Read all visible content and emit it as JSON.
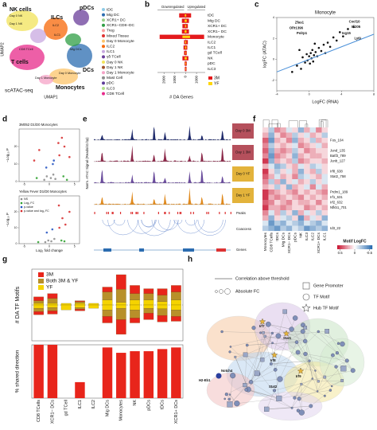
{
  "panel_labels": [
    "a",
    "b",
    "c",
    "d",
    "e",
    "f",
    "g",
    "h"
  ],
  "umap": {
    "title": "scATAC-seq",
    "x_label": "UMAP1",
    "y_label": "UMAP2",
    "cluster_labels": [
      "NK cells",
      "ILCs",
      "pDCs",
      "T cells",
      "DCs",
      "Monocytes"
    ],
    "subcluster_labels": [
      "Day 0 NK",
      "Day 1 NK",
      "ILC2",
      "ILC1",
      "Mig DCs",
      "CD8 TCell",
      "Day 0 Monocyte",
      "Day 1 Monocyte"
    ],
    "legend": [
      {
        "name": "tDC",
        "color": "#8ecae6"
      },
      {
        "name": "Mig DC",
        "color": "#2b6cb0"
      },
      {
        "name": "XCR1+ DC",
        "color": "#9bd18b"
      },
      {
        "name": "XCR1−CD8−DC",
        "color": "#2f9e44"
      },
      {
        "name": "Treg",
        "color": "#f7a1a1"
      },
      {
        "name": "Mixed Tissue",
        "color": "#e03131"
      },
      {
        "name": "Day 0 Monocyte",
        "color": "#fcc46a"
      },
      {
        "name": "ILC2",
        "color": "#f76707"
      },
      {
        "name": "ILC1",
        "color": "#c8a8e0"
      },
      {
        "name": "γδ TCell",
        "color": "#6a3d9a"
      },
      {
        "name": "Day 0 NK",
        "color": "#f2e35a"
      },
      {
        "name": "Day 1 NK",
        "color": "#a0522d"
      },
      {
        "name": "Day 1 Monocyte",
        "color": "#f5a3c7"
      },
      {
        "name": "Mast Cell",
        "color": "#8d8d8d"
      },
      {
        "name": "pDC",
        "color": "#5e3c99"
      },
      {
        "name": "ILC3",
        "color": "#b2df8a"
      },
      {
        "name": "CD8 TCell",
        "color": "#e7298a"
      }
    ]
  },
  "chart_data": [
    {
      "type": "bar",
      "orientation": "horizontal",
      "direction_labels": [
        "Downregulated",
        "Upregulated"
      ],
      "x_label": "# DA Genes",
      "categories": [
        "tDC",
        "Mig DC",
        "XCR1+ DC",
        "XCR1− DC",
        "Monocyte",
        "ILC2",
        "ILC1",
        "gd TCell",
        "NK",
        "pDC",
        "ILC3"
      ],
      "series": [
        {
          "name": "3M",
          "color": "#e41a1c",
          "values": [
            500,
            300,
            200,
            300,
            1700,
            200,
            150,
            100,
            250,
            100,
            80
          ],
          "values_down": [
            -600,
            -350,
            -300,
            -350,
            -2400,
            -150,
            -200,
            -150,
            -300,
            -100,
            -80
          ]
        },
        {
          "name": "YF",
          "color": "#ffd60a",
          "values": [
            50,
            100,
            50,
            80,
            400,
            50,
            60,
            20,
            100,
            30,
            20
          ],
          "values_down": [
            -80,
            -100,
            -60,
            -100,
            -300,
            -50,
            -60,
            -30,
            -100,
            -40,
            -20
          ]
        }
      ],
      "xlim": [
        -2600,
        1800
      ],
      "xticks": [
        {
          "value": -2000,
          "label": "2000"
        },
        {
          "value": -1000,
          "label": "1000"
        },
        0,
        {
          "value": 1000,
          "label": "1000"
        }
      ]
    },
    {
      "type": "scatter",
      "title": "Monocyte",
      "x_label": "LogFC (RNA)",
      "y_label": "logFC (ATAC)",
      "color": "#111111",
      "x": [
        -2.1,
        -1.5,
        -1,
        -0.8,
        -0.5,
        -0.3,
        -0.2,
        0,
        0.1,
        0.2,
        0.3,
        0.4,
        0.5,
        0.6,
        0.8,
        1,
        1.2,
        1.5,
        1.8,
        2,
        2.3,
        2.6,
        3,
        3.4,
        3.8,
        4.2,
        4.8,
        5.5,
        -1.2,
        0.7
      ],
      "values": [
        -1.2,
        -0.6,
        -0.9,
        0.2,
        -0.3,
        0.5,
        -0.1,
        0.3,
        -0.4,
        0.6,
        0.1,
        0.9,
        -0.2,
        0.4,
        0.7,
        0.3,
        1.1,
        0.8,
        1.4,
        0.6,
        1.6,
        1.2,
        2.1,
        1.8,
        2.6,
        2.2,
        2.9,
        3.1,
        0.9,
        1.5
      ],
      "fit": {
        "slope": 0.3,
        "intercept": 0,
        "color": "#4a90d9"
      },
      "annotations": [
        {
          "text": "Zfas1",
          "x": -1.2,
          "y": 3.5
        },
        {
          "text": "Olfr1396",
          "x": -1.6,
          "y": 3
        },
        {
          "text": "Polrp1",
          "x": -0.9,
          "y": 2.5
        },
        {
          "text": "Cxcl10",
          "x": 5.6,
          "y": 3.6
        },
        {
          "text": "Ifi205",
          "x": 5.8,
          "y": 3.1
        },
        {
          "text": "Isg15",
          "x": 4.6,
          "y": 2.5
        },
        {
          "text": "Ly6i",
          "x": 6,
          "y": 2
        }
      ],
      "xlim": [
        -4,
        8
      ],
      "ylim": [
        -3,
        4
      ],
      "xticks": [
        -4,
        0,
        4,
        8
      ],
      "yticks": [
        -2,
        0,
        2,
        4
      ]
    },
    {
      "type": "scatter",
      "title": "3M052 D1/D0 Monocytes",
      "y_label": "−Log₁₀ P",
      "series": [
        {
          "color": "#8a8a8a",
          "x": [
            -1,
            -0.5,
            0.3,
            0.8,
            1.2
          ],
          "values": [
            1,
            3,
            2,
            4,
            1.5
          ]
        },
        {
          "color": "#2ca02c",
          "x": [
            -2.5,
            2.8,
            3.5
          ],
          "values": [
            2,
            3,
            1
          ]
        },
        {
          "color": "#1f4fbf",
          "x": [
            -0.6,
            0.7,
            0.9
          ],
          "values": [
            8,
            10,
            12
          ]
        },
        {
          "color": "#d62728",
          "x": [
            -3,
            -2,
            2,
            3,
            4,
            2.5,
            1.8
          ],
          "values": [
            12,
            18,
            15,
            20,
            14,
            25,
            22
          ]
        }
      ],
      "xlim": [
        -6,
        6
      ],
      "ylim": [
        0,
        30
      ],
      "xticks": [
        -5,
        0,
        5
      ],
      "yticks": [
        0,
        10,
        20
      ]
    },
    {
      "type": "scatter",
      "title": "Yellow Fever D1/D0 Monocytes",
      "x_label": "Log₂ fold change",
      "y_label": "−Log₁₀ P",
      "series": [
        {
          "name": "NS",
          "color": "#8a8a8a",
          "x": [
            -0.8,
            -0.2,
            0.4,
            1
          ],
          "values": [
            1,
            2,
            1.5,
            3
          ]
        },
        {
          "name": "Log₂ FC",
          "color": "#2ca02c",
          "x": [
            -2.2,
            2.4,
            3
          ],
          "values": [
            1,
            2,
            1.5
          ]
        },
        {
          "name": "p-value",
          "color": "#1f4fbf",
          "x": [
            -0.5,
            0.6
          ],
          "values": [
            7,
            9
          ]
        },
        {
          "name": "p-value and log₂ FC",
          "color": "#d62728",
          "x": [
            2,
            2.6,
            3.2,
            4,
            1.9
          ],
          "values": [
            10,
            16,
            12,
            20,
            24
          ]
        }
      ],
      "xlim": [
        -6,
        6
      ],
      "ylim": [
        0,
        30
      ],
      "xticks": [
        -5,
        0,
        5
      ],
      "yticks": [
        0,
        10,
        20
      ]
    },
    {
      "type": "heatmap",
      "legend_title": "Motif LogFC",
      "columns": [
        "Monocytes",
        "CD8 TCells",
        "tDCs",
        "Mig DCs",
        "XCR1− DCs",
        "pDCs",
        "NK",
        "ILC3",
        "ILC2",
        "XCR1+ DCs",
        "ILC1"
      ],
      "rows": [
        null,
        null,
        "Fos_104",
        null,
        "Jund_135",
        "Batf3_789",
        "Junb_127",
        null,
        "Irf8_638",
        "Stat2_758",
        null,
        null,
        "Prdm1_189",
        "Irf1_631",
        "Irf2_632",
        "Nfkb1_701",
        null,
        null,
        null,
        "Id3_22"
      ],
      "values": [
        [
          0.1,
          -0.2,
          0.3,
          0.2,
          -0.1,
          0.1,
          -0.3,
          0.2,
          -0.1,
          0.3,
          0.1
        ],
        [
          0.2,
          -0.3,
          0.1,
          0.3,
          0.2,
          -0.2,
          0.1,
          -0.1,
          0.2,
          0.1,
          -0.2
        ],
        [
          0.4,
          -0.4,
          0.2,
          0.1,
          0.3,
          -0.3,
          0.2,
          0.1,
          -0.2,
          0.2,
          0.1
        ],
        [
          0.3,
          -0.2,
          0.1,
          0.2,
          0.1,
          -0.1,
          0.3,
          0.2,
          0.1,
          -0.1,
          0.2
        ],
        [
          0.4,
          -0.3,
          0.2,
          0.3,
          0.2,
          -0.2,
          0.1,
          0.3,
          0.2,
          0.1,
          0.1
        ],
        [
          0.3,
          -0.4,
          0.3,
          0.2,
          0.1,
          -0.3,
          0.2,
          0.1,
          0.2,
          0.2,
          0.1
        ],
        [
          0.5,
          -0.3,
          0.2,
          0.1,
          0.2,
          -0.2,
          0.3,
          0.2,
          0.1,
          0.1,
          0.2
        ],
        [
          0.2,
          -0.1,
          -0.3,
          -0.2,
          0.1,
          0.2,
          -0.1,
          0.1,
          -0.2,
          -0.1,
          0.1
        ],
        [
          0.5,
          0.1,
          -0.2,
          0.1,
          -0.1,
          0.2,
          -0.3,
          0.1,
          0.2,
          -0.2,
          0.1
        ],
        [
          0.4,
          0.2,
          -0.1,
          0.2,
          0.1,
          0.3,
          -0.2,
          -0.1,
          0.1,
          0.2,
          -0.1
        ],
        [
          0.3,
          -0.2,
          0.2,
          -0.3,
          0.1,
          -0.1,
          0.2,
          0.1,
          -0.2,
          0.1,
          -0.1
        ],
        [
          0.2,
          0.1,
          -0.2,
          0.1,
          -0.3,
          0.2,
          0.1,
          -0.1,
          0.3,
          -0.1,
          0.2
        ],
        [
          0.5,
          0.3,
          0.2,
          0.1,
          0.2,
          0.3,
          0.1,
          0.2,
          0.1,
          0.2,
          0.3
        ],
        [
          0.5,
          0.2,
          0.3,
          0.2,
          0.1,
          0.2,
          0.3,
          0.1,
          0.2,
          0.1,
          0.2
        ],
        [
          0.4,
          0.3,
          0.1,
          0.2,
          0.3,
          0.1,
          0.2,
          0.2,
          0.1,
          0.3,
          0.1
        ],
        [
          0.5,
          0.2,
          0.2,
          0.3,
          0.2,
          0.1,
          0.1,
          0.3,
          0.2,
          0.1,
          0.2
        ],
        [
          0.3,
          -0.1,
          0.2,
          -0.2,
          0.1,
          -0.3,
          0.2,
          -0.1,
          0.1,
          -0.2,
          0.1
        ],
        [
          0.2,
          -0.3,
          0.1,
          -0.1,
          -0.2,
          0.1,
          -0.4,
          0.2,
          -0.1,
          0.1,
          -0.3
        ],
        [
          -0.1,
          -0.4,
          -0.2,
          -0.3,
          -0.1,
          -0.2,
          -0.3,
          -0.1,
          -0.2,
          -0.3,
          -0.1
        ],
        [
          -0.2,
          -0.3,
          -0.4,
          -0.2,
          -0.3,
          -0.1,
          -0.2,
          -0.4,
          -0.3,
          -0.2,
          -0.3
        ]
      ],
      "colors": [
        "#2166ac",
        "#ffffff",
        "#c8102e"
      ],
      "zlim": [
        -0.6,
        0.6
      ],
      "colorbar_ticks": [
        0.5,
        0,
        -0.5
      ]
    },
    {
      "type": "bar",
      "stacked": true,
      "y_label": "# DA TF Motifs",
      "series": [
        {
          "name": "3M",
          "color": "#e8251b",
          "values": [
            12,
            15,
            0,
            3,
            0,
            15,
            45,
            25,
            15,
            20,
            20
          ],
          "values_down": [
            -10,
            -10,
            0,
            -5,
            0,
            -20,
            -45,
            -15,
            -20,
            -20,
            -15
          ]
        },
        {
          "name": "Both 3M & YF",
          "color": "#b8902a",
          "values": [
            8,
            15,
            0,
            5,
            0,
            25,
            40,
            20,
            20,
            20,
            25
          ],
          "values_down": [
            -10,
            -10,
            0,
            -5,
            0,
            -20,
            -35,
            -25,
            -15,
            -20,
            -20
          ]
        },
        {
          "name": "YF",
          "color": "#f5d300",
          "values": [
            5,
            5,
            5,
            5,
            5,
            15,
            8,
            15,
            15,
            10,
            15
          ],
          "values_down": [
            -10,
            -8,
            -15,
            -8,
            -10,
            -15,
            -10,
            -15,
            -10,
            -12,
            -15
          ]
        }
      ],
      "ylim": [
        -110,
        110
      ]
    },
    {
      "type": "bar",
      "y_label": "% shared direction",
      "color": "#e8251b",
      "categories": [
        "CD8 TCells",
        "XCR1− DCs",
        "gd TCell",
        "ILC1",
        "ILC2",
        "Mig DCs",
        "Monocytes",
        "NK",
        "pDCs",
        "tDCs",
        "XCR1+ DCs"
      ],
      "values": [
        100,
        100,
        0,
        30,
        0,
        95,
        85,
        88,
        88,
        92,
        95
      ],
      "ylim": [
        0,
        100
      ]
    }
  ],
  "tracks": {
    "y_label": "Norm. ATAC Signal (Reads/41 bp)",
    "tracks": [
      {
        "name": "Day 0 3M",
        "color": "#1f2a6b"
      },
      {
        "name": "Day 1 3M",
        "color": "#8c2a4a"
      },
      {
        "name": "Day 0 YF",
        "color": "#6a4c9c"
      },
      {
        "name": "Day 1 YF",
        "color": "#e08a1e"
      }
    ],
    "rows": [
      "Peaks",
      "Coaccess",
      "Genes"
    ]
  },
  "network": {
    "legend": [
      "Correlation above threshold",
      "Absolute FC",
      "Gene Promoter",
      "TF Motif",
      "Hub TF Motif"
    ],
    "node_labels": [
      "H2-Eb1",
      "Notch4",
      "Irf8",
      "Stat1",
      "Irf7",
      "Irf9",
      "Stat2"
    ]
  }
}
